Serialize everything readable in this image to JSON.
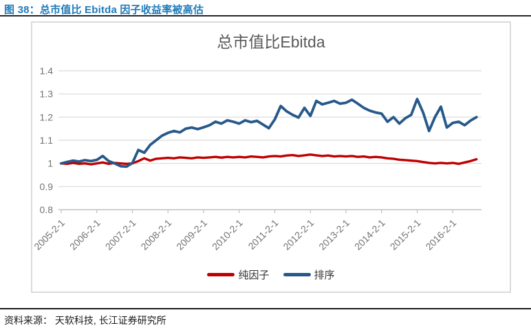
{
  "figure": {
    "caption": "图 38：总市值比 Ebitda 因子收益率被高估",
    "source": "资料来源： 天软科技, 长江证券研究所"
  },
  "colors": {
    "caption_blue": "#1e7ab8",
    "pure_factor_red": "#c00000",
    "rank_blue": "#26598a",
    "gridline": "#d9d9d9",
    "axis": "#bfbfbf",
    "tick_text": "#737373",
    "title_text": "#595959"
  },
  "chart_data": {
    "type": "line",
    "title": "总市值比Ebitda",
    "xlabel": "",
    "ylabel": "",
    "ylim": [
      0.8,
      1.4
    ],
    "grid": true,
    "legend_position": "bottom",
    "y_tick_labels": [
      "0.8",
      "0.9",
      "1",
      "1.1",
      "1.2",
      "1.3",
      "1.4"
    ],
    "y_ticks": [
      0.8,
      0.9,
      1.0,
      1.1,
      1.2,
      1.3,
      1.4
    ],
    "x_tick_labels": [
      "2005-2-1",
      "2006-2-1",
      "2007-2-1",
      "2008-2-1",
      "2009-2-1",
      "2010-2-1",
      "2011-2-1",
      "2012-2-1",
      "2013-2-1",
      "2014-2-1",
      "2015-2-1",
      "2016-2-1"
    ],
    "x_start": "2005-02-01",
    "x_step_months": 2,
    "series": [
      {
        "name": "纯因子",
        "color": "#c00000",
        "values": [
          1.0,
          0.998,
          1.002,
          0.998,
          1.0,
          0.996,
          1.0,
          1.004,
          0.998,
          1.002,
          1.0,
          0.998,
          1.0,
          1.01,
          1.022,
          1.012,
          1.02,
          1.022,
          1.024,
          1.022,
          1.026,
          1.024,
          1.022,
          1.026,
          1.024,
          1.026,
          1.028,
          1.025,
          1.028,
          1.026,
          1.028,
          1.026,
          1.03,
          1.028,
          1.026,
          1.03,
          1.032,
          1.03,
          1.034,
          1.036,
          1.032,
          1.035,
          1.038,
          1.035,
          1.032,
          1.034,
          1.03,
          1.032,
          1.03,
          1.032,
          1.028,
          1.03,
          1.026,
          1.028,
          1.026,
          1.022,
          1.02,
          1.016,
          1.014,
          1.012,
          1.01,
          1.006,
          1.002,
          1.0,
          1.002,
          1.0,
          1.002,
          0.998,
          1.004,
          1.01,
          1.018
        ]
      },
      {
        "name": "排序",
        "color": "#26598a",
        "values": [
          1.0,
          1.006,
          1.012,
          1.008,
          1.014,
          1.01,
          1.015,
          1.032,
          1.01,
          1.0,
          0.988,
          0.986,
          1.002,
          1.058,
          1.046,
          1.08,
          1.1,
          1.12,
          1.132,
          1.14,
          1.134,
          1.15,
          1.155,
          1.148,
          1.156,
          1.165,
          1.18,
          1.172,
          1.186,
          1.18,
          1.172,
          1.186,
          1.178,
          1.184,
          1.168,
          1.152,
          1.19,
          1.248,
          1.225,
          1.21,
          1.198,
          1.24,
          1.205,
          1.27,
          1.255,
          1.262,
          1.27,
          1.258,
          1.262,
          1.275,
          1.258,
          1.24,
          1.228,
          1.22,
          1.215,
          1.18,
          1.2,
          1.172,
          1.195,
          1.21,
          1.278,
          1.22,
          1.14,
          1.2,
          1.245,
          1.155,
          1.175,
          1.18,
          1.165,
          1.185,
          1.2
        ]
      }
    ]
  }
}
